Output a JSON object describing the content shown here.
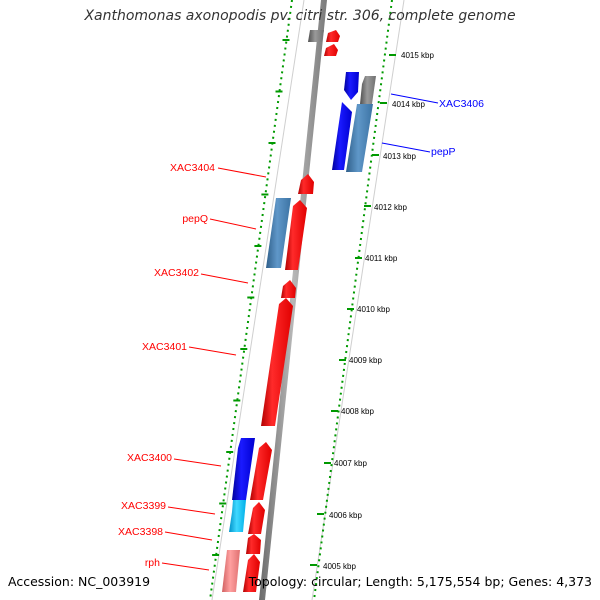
{
  "title": "Xanthomonas axonopodis pv. citri str. 306, complete genome",
  "footer": {
    "accession": "Accession: NC_003919",
    "topology": "Topology: circular; Length: 5,175,554 bp; Genes: 4,373"
  },
  "colors": {
    "forward_gene": "#ff0000",
    "reverse_gene": "#0000ff",
    "reverse_gene_light": "#00bfff",
    "steelblue_gene": "#4682b4",
    "grey_gene": "#808080",
    "pseudo_gene": "#f08080",
    "backbone": "#909090",
    "dotted_ring": "#009900",
    "red_label": "#ff0000",
    "blue_label": "#0000ff"
  },
  "ticks": [
    {
      "label": "4015 kbp"
    },
    {
      "label": "4014 kbp"
    },
    {
      "label": "4013 kbp"
    },
    {
      "label": "4012 kbp"
    },
    {
      "label": "4011 kbp"
    },
    {
      "label": "4010 kbp"
    },
    {
      "label": "4009 kbp"
    },
    {
      "label": "4008 kbp"
    },
    {
      "label": "4007 kbp"
    },
    {
      "label": "4006 kbp"
    },
    {
      "label": "4005 kbp"
    }
  ],
  "gene_labels": [
    {
      "text": "XAC3406",
      "color": "blue"
    },
    {
      "text": "pepP",
      "color": "blue"
    },
    {
      "text": "XAC3404",
      "color": "red"
    },
    {
      "text": "pepQ",
      "color": "red"
    },
    {
      "text": "XAC3402",
      "color": "red"
    },
    {
      "text": "XAC3401",
      "color": "red"
    },
    {
      "text": "XAC3400",
      "color": "red"
    },
    {
      "text": "XAC3399",
      "color": "red"
    },
    {
      "text": "XAC3398",
      "color": "red"
    },
    {
      "text": "rph",
      "color": "red"
    }
  ]
}
